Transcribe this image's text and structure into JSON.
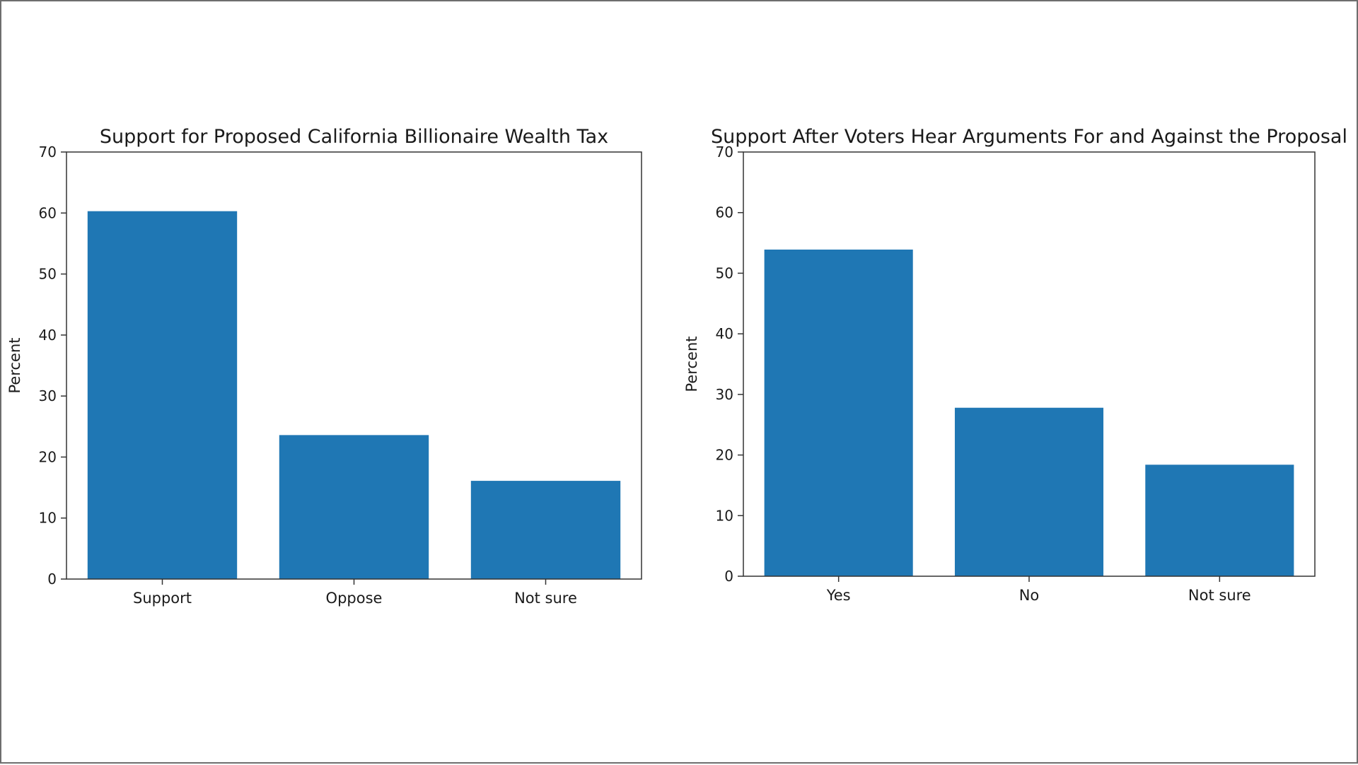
{
  "chart_data": [
    {
      "type": "bar",
      "title": "Support for Proposed California Billionaire Wealth Tax",
      "xlabel": "",
      "ylabel": "Percent",
      "ylim": [
        0,
        70
      ],
      "yticks": [
        0,
        10,
        20,
        30,
        40,
        50,
        60,
        70
      ],
      "categories": [
        "Support",
        "Oppose",
        "Not sure"
      ],
      "values": [
        60.3,
        23.6,
        16.1
      ],
      "grid": false,
      "color": "#1f77b4"
    },
    {
      "type": "bar",
      "title": "Support After Voters Hear Arguments For and Against the Proposal",
      "xlabel": "",
      "ylabel": "Percent",
      "ylim": [
        0,
        70
      ],
      "yticks": [
        0,
        10,
        20,
        30,
        40,
        50,
        60,
        70
      ],
      "categories": [
        "Yes",
        "No",
        "Not sure"
      ],
      "values": [
        53.9,
        27.8,
        18.4
      ],
      "grid": false,
      "color": "#1f77b4"
    }
  ]
}
